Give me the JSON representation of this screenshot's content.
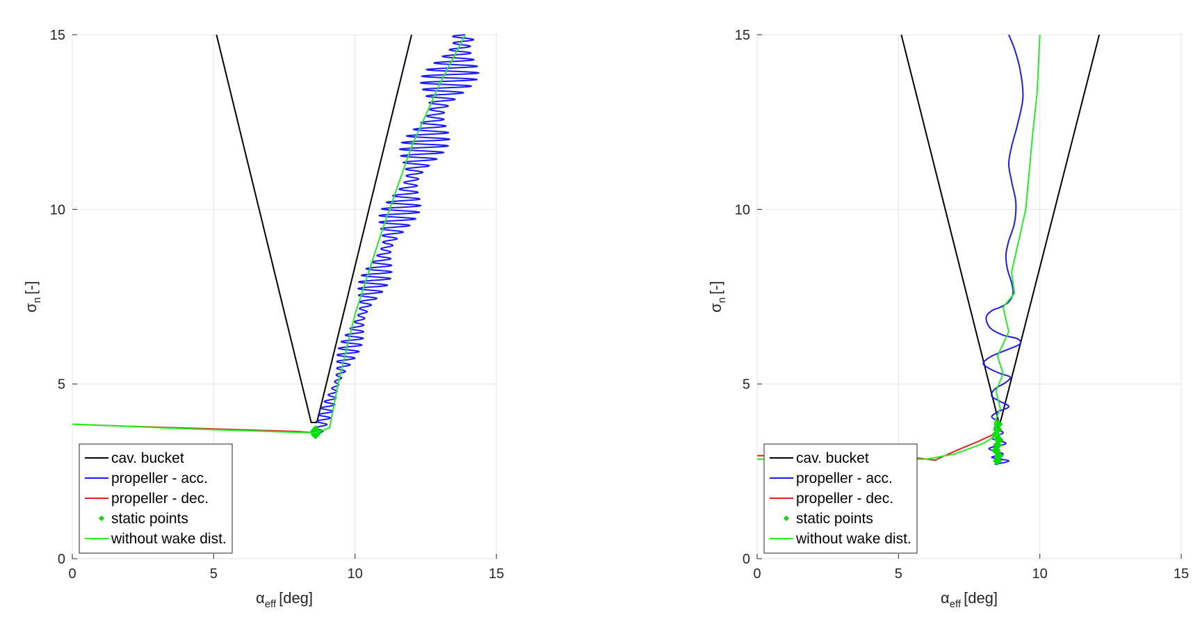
{
  "chart_data": [
    {
      "type": "line",
      "xlabel": "α",
      "xlabel_sub": "eff",
      "xlabel_unit": "[deg]",
      "ylabel": "σ",
      "ylabel_sub": "n",
      "ylabel_unit": "[-]",
      "xlim": [
        0,
        15
      ],
      "ylim": [
        0,
        15
      ],
      "xticks": [
        0,
        5,
        10,
        15
      ],
      "yticks": [
        0,
        5,
        10,
        15
      ],
      "grid": true,
      "legend_position": "bottom-left",
      "series": [
        {
          "name": "cav. bucket",
          "kind": "line",
          "color": "#000000",
          "x": [
            5.1,
            8.45,
            8.65,
            12.0
          ],
          "y": [
            15.0,
            3.9,
            3.9,
            15.0
          ]
        },
        {
          "name": "propeller - acc.",
          "kind": "wiggle",
          "color": "#1a1aff",
          "y_start": 3.6,
          "y_end": 15.0,
          "x_base_start": 8.7,
          "x_base_end": 13.9,
          "amp_start": 0.2,
          "amp_end": 1.1,
          "cycles": 60
        },
        {
          "name": "propeller - dec.",
          "kind": "line",
          "color": "#e8201c",
          "x": [
            0,
            2.0,
            4.0,
            6.0,
            8.0,
            8.6
          ],
          "y": [
            3.85,
            3.79,
            3.74,
            3.69,
            3.64,
            3.6
          ]
        },
        {
          "name": "static points",
          "kind": "points",
          "color": "#00dd00",
          "x": [
            8.6,
            8.55,
            8.65,
            8.6
          ],
          "y": [
            3.55,
            3.62,
            3.6,
            3.68
          ]
        },
        {
          "name": "without wake dist.",
          "kind": "line",
          "color": "#22ee22",
          "x": [
            0,
            4,
            8.6,
            9.1,
            9.4,
            10.0,
            11.0,
            12.0,
            13.0,
            13.9
          ],
          "y": [
            3.85,
            3.72,
            3.6,
            3.75,
            5.0,
            7.0,
            9.5,
            11.8,
            13.6,
            15.0
          ]
        }
      ]
    },
    {
      "type": "line",
      "xlabel": "α",
      "xlabel_sub": "eff",
      "xlabel_unit": "[deg]",
      "ylabel": "σ",
      "ylabel_sub": "n",
      "ylabel_unit": "[-]",
      "xlim": [
        0,
        15
      ],
      "ylim": [
        0,
        15
      ],
      "xticks": [
        0,
        5,
        10,
        15
      ],
      "yticks": [
        0,
        5,
        10,
        15
      ],
      "grid": true,
      "legend_position": "bottom-left",
      "series": [
        {
          "name": "cav. bucket",
          "kind": "line",
          "color": "#000000",
          "x": [
            5.1,
            8.55,
            8.6,
            12.1
          ],
          "y": [
            15.0,
            3.9,
            3.9,
            15.0
          ]
        },
        {
          "name": "propeller - acc.",
          "kind": "line",
          "color": "#1a1aff",
          "x": [
            8.9,
            9.1,
            9.3,
            9.4,
            9.2,
            9.0,
            8.9,
            9.0,
            9.15,
            9.1,
            8.9,
            8.8,
            8.85,
            9.0,
            9.05,
            8.9,
            8.6,
            8.3,
            8.1,
            8.25,
            8.7,
            9.2,
            9.3,
            8.9,
            8.3,
            8.0,
            8.2,
            8.6,
            8.95,
            8.8,
            8.4,
            8.3,
            8.6,
            8.9,
            8.5,
            8.3,
            8.6,
            8.4,
            8.7,
            8.3,
            8.8,
            8.2,
            8.7,
            8.3,
            8.9,
            8.4
          ],
          "y": [
            15.0,
            14.6,
            14.0,
            13.2,
            12.4,
            11.8,
            11.3,
            10.8,
            10.2,
            9.6,
            9.1,
            8.7,
            8.3,
            7.9,
            7.6,
            7.35,
            7.2,
            7.1,
            6.9,
            6.6,
            6.4,
            6.3,
            6.15,
            6.0,
            5.8,
            5.6,
            5.45,
            5.3,
            5.2,
            5.05,
            4.85,
            4.65,
            4.5,
            4.35,
            4.2,
            4.05,
            3.9,
            3.75,
            3.6,
            3.45,
            3.3,
            3.15,
            3.0,
            2.9,
            2.8,
            2.7
          ]
        },
        {
          "name": "propeller - dec.",
          "kind": "line",
          "color": "#e8201c",
          "x": [
            0,
            3.0,
            5.5,
            6.3,
            6.5,
            7.2,
            7.8,
            8.2,
            8.5
          ],
          "y": [
            2.95,
            2.95,
            2.9,
            2.82,
            2.9,
            3.15,
            3.35,
            3.5,
            3.6
          ]
        },
        {
          "name": "static points",
          "kind": "points",
          "color": "#00dd00",
          "x": [
            8.5,
            8.55,
            8.45,
            8.5,
            8.55,
            8.45,
            8.5,
            8.52
          ],
          "y": [
            2.8,
            2.95,
            3.1,
            3.25,
            3.4,
            3.55,
            3.7,
            3.85
          ]
        },
        {
          "name": "without wake dist.",
          "kind": "line",
          "color": "#22ee22",
          "x": [
            0,
            3.0,
            6.0,
            7.0,
            8.0,
            8.5,
            8.4,
            8.6,
            8.45,
            8.7,
            8.5,
            8.9,
            8.7,
            9.1,
            9.0,
            9.5,
            9.75,
            9.9,
            10.0
          ],
          "y": [
            2.85,
            2.85,
            2.85,
            3.0,
            3.3,
            3.55,
            3.9,
            4.3,
            4.8,
            5.3,
            5.8,
            6.5,
            7.2,
            7.6,
            8.2,
            10.0,
            12.2,
            13.3,
            15.0
          ]
        }
      ]
    }
  ]
}
